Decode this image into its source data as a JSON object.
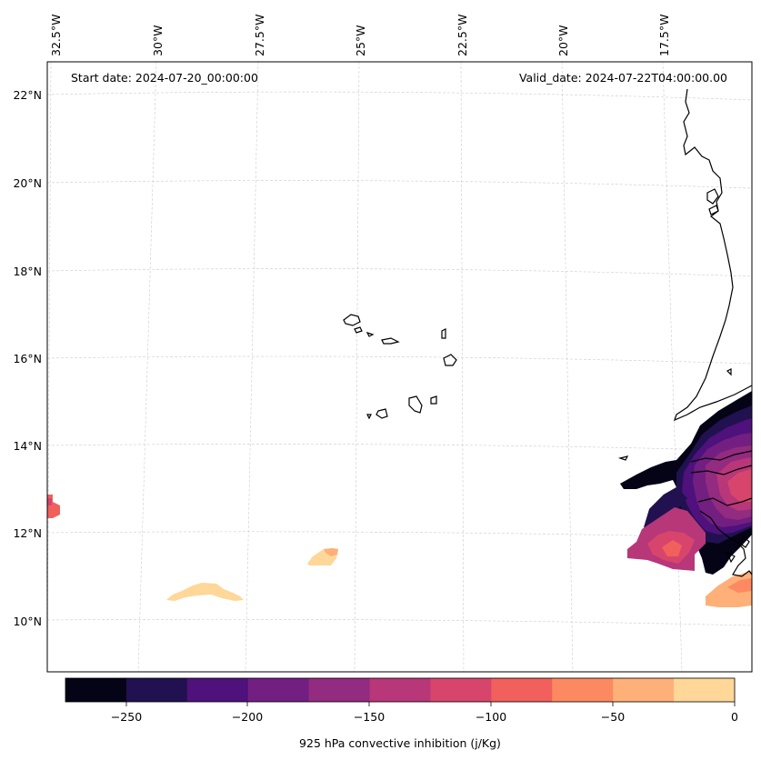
{
  "map": {
    "start_date": "Start date: 2024-07-20_00:00:00",
    "valid_date": "Valid_date: 2024-07-22T04:00:00.00",
    "lon_labels": [
      "32.5°W",
      "30°W",
      "27.5°W",
      "25°W",
      "22.5°W",
      "20°W",
      "17.5°W"
    ],
    "lat_labels": [
      "22°N",
      "20°N",
      "18°N",
      "16°N",
      "14°N",
      "12°N",
      "10°N"
    ]
  },
  "colorbar": {
    "label": "925 hPa convective inhibition (j/Kg)",
    "tick_labels": [
      "−250",
      "−200",
      "−150",
      "−100",
      "−50",
      "0"
    ],
    "levels": [
      -275,
      -250,
      -225,
      -200,
      -175,
      -150,
      -125,
      -100,
      -75,
      -50,
      -25,
      0
    ],
    "colors": [
      "#050416",
      "#221150",
      "#4f117b",
      "#721f81",
      "#932b80",
      "#b73779",
      "#d8456c",
      "#f1605d",
      "#fc8961",
      "#feb078",
      "#fed799"
    ]
  }
}
